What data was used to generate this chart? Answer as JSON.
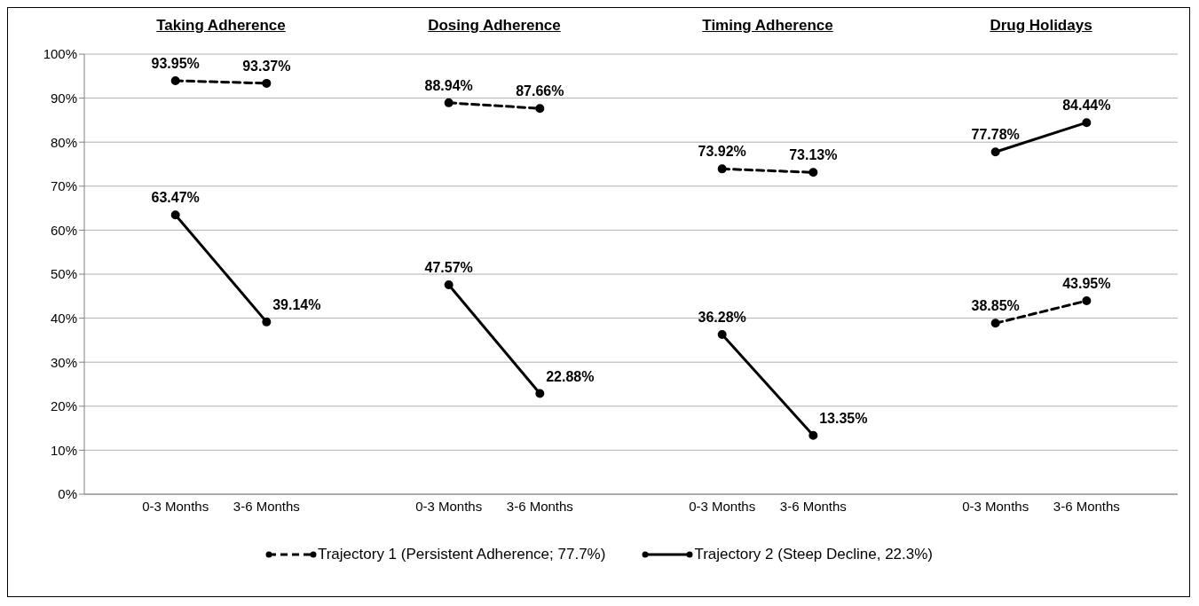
{
  "chart_data": [
    {
      "type": "line",
      "title": "Taking Adherence",
      "categories": [
        "0-3 Months",
        "3-6 Months"
      ],
      "series": [
        {
          "name": "Trajectory 1 (Persistent Adherence; 77.7%)",
          "color": "#000000",
          "line_style": "dashed",
          "values": [
            93.95,
            93.37
          ],
          "value_labels": [
            "93.95%",
            "93.37%"
          ]
        },
        {
          "name": "Trajectory 2 (Steep Decline, 22.3%)",
          "color": "#000000",
          "line_style": "solid",
          "values": [
            63.47,
            39.14
          ],
          "value_labels": [
            "63.47%",
            "39.14%"
          ]
        }
      ],
      "ylim": [
        0,
        100
      ],
      "yticks": [
        {
          "value": 0,
          "label": "0%"
        },
        {
          "value": 10,
          "label": "10%"
        },
        {
          "value": 20,
          "label": "20%"
        },
        {
          "value": 30,
          "label": "30%"
        },
        {
          "value": 40,
          "label": "40%"
        },
        {
          "value": 50,
          "label": "50%"
        },
        {
          "value": 60,
          "label": "60%"
        },
        {
          "value": 70,
          "label": "70%"
        },
        {
          "value": 80,
          "label": "80%"
        },
        {
          "value": 90,
          "label": "90%"
        },
        {
          "value": 100,
          "label": "100%"
        }
      ],
      "grid": "y",
      "marker": "circle",
      "legend": "bottom"
    },
    {
      "type": "line",
      "title": "Dosing Adherence",
      "categories": [
        "0-3 Months",
        "3-6 Months"
      ],
      "series": [
        {
          "color": "#000000",
          "line_style": "dashed",
          "values": [
            88.94,
            87.66
          ],
          "value_labels": [
            "88.94%",
            "87.66%"
          ]
        },
        {
          "color": "#000000",
          "line_style": "solid",
          "values": [
            47.57,
            22.88
          ],
          "value_labels": [
            "47.57%",
            "22.88%"
          ]
        }
      ],
      "ylim": [
        0,
        100
      ],
      "yticks": [
        0,
        10,
        20,
        30,
        40,
        50,
        60,
        70,
        80,
        90,
        100
      ],
      "tick_labels": "x",
      "grid": "y",
      "marker": "circle"
    },
    {
      "type": "line",
      "title": "Timing Adherence",
      "categories": [
        "0-3 Months",
        "3-6 Months"
      ],
      "series": [
        {
          "color": "#000000",
          "line_style": "dashed",
          "values": [
            73.92,
            73.13
          ],
          "value_labels": [
            "73.92%",
            "73.13%"
          ]
        },
        {
          "color": "#000000",
          "line_style": "solid",
          "values": [
            36.28,
            13.35
          ],
          "value_labels": [
            "36.28%",
            "13.35%"
          ]
        }
      ],
      "ylim": [
        0,
        100
      ],
      "yticks": [
        0,
        10,
        20,
        30,
        40,
        50,
        60,
        70,
        80,
        90,
        100
      ],
      "tick_labels": "x",
      "grid": "y",
      "marker": "circle"
    },
    {
      "type": "line",
      "title": "Drug Holidays",
      "categories": [
        "0-3 Months",
        "3-6 Months"
      ],
      "series": [
        {
          "color": "#000000",
          "line_style": "dashed",
          "values": [
            38.85,
            43.95
          ],
          "value_labels": [
            "38.85%",
            "43.95%"
          ]
        },
        {
          "color": "#000000",
          "line_style": "solid",
          "values": [
            77.78,
            84.44
          ],
          "value_labels": [
            "77.78%",
            "84.44%"
          ]
        }
      ],
      "ylim": [
        0,
        100
      ],
      "yticks": [
        0,
        10,
        20,
        30,
        40,
        50,
        60,
        70,
        80,
        90,
        100
      ],
      "tick_labels": "x",
      "grid": "y",
      "marker": "circle"
    }
  ]
}
